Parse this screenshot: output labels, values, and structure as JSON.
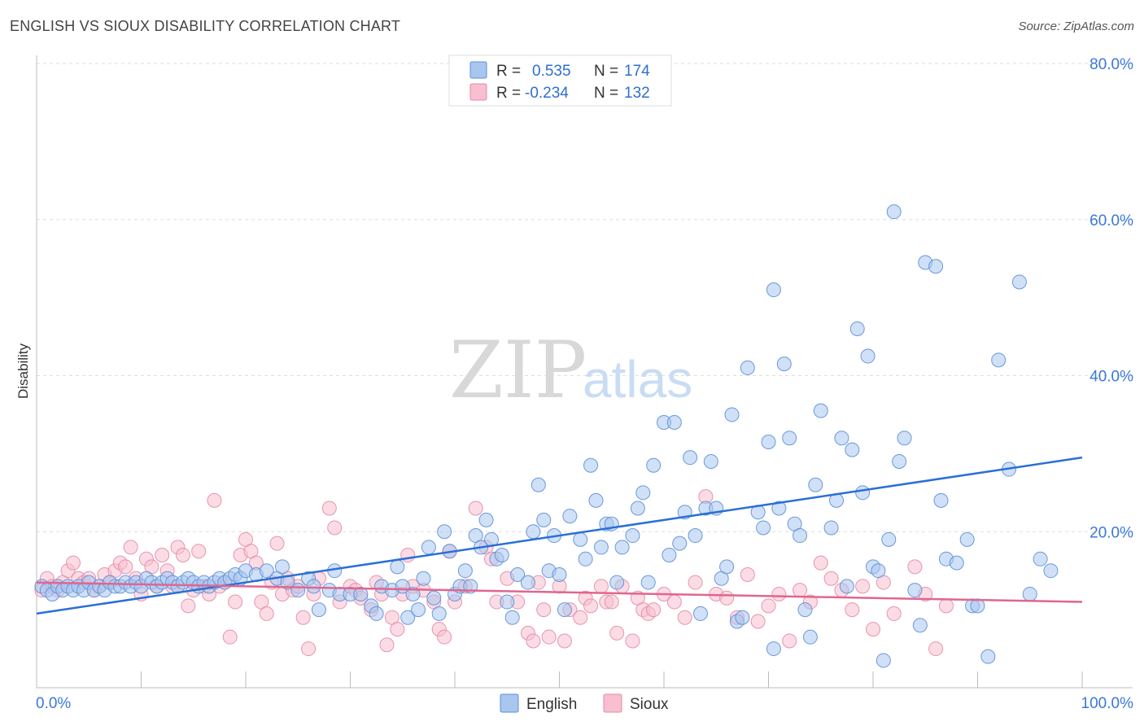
{
  "header": {
    "title": "ENGLISH VS SIOUX DISABILITY CORRELATION CHART",
    "source": "Source: ZipAtlas.com"
  },
  "watermark": {
    "zip": "ZIP",
    "atlas": "atlas"
  },
  "legend_top": {
    "rows": [
      {
        "r_label": "R =",
        "r_value": "0.535",
        "n_label": "N =",
        "n_value": "174"
      },
      {
        "r_label": "R =",
        "r_value": "-0.234",
        "n_label": "N =",
        "n_value": "132"
      }
    ]
  },
  "legend_bottom": {
    "items": [
      "English",
      "Sioux"
    ]
  },
  "colors": {
    "english_fill": "#a9c6ee",
    "english_stroke": "#5b8fd8",
    "english_line": "#2a6fd6",
    "sioux_fill": "#f7bfd0",
    "sioux_stroke": "#e58aa7",
    "sioux_line": "#e0668f",
    "axis_text": "#3b78d8",
    "grid": "#dddddd"
  },
  "chart_data": {
    "type": "scatter",
    "title": "ENGLISH VS SIOUX DISABILITY CORRELATION CHART",
    "xlabel": "",
    "ylabel": "Disability",
    "xlim": [
      0,
      100
    ],
    "ylim": [
      0,
      80
    ],
    "x_tick_labels": [
      "0.0%",
      "100.0%"
    ],
    "y_ticks": [
      20,
      40,
      60,
      80
    ],
    "y_tick_labels": [
      "20.0%",
      "40.0%",
      "60.0%",
      "80.0%"
    ],
    "grid": true,
    "series": [
      {
        "name": "English",
        "r": 0.535,
        "n": 174,
        "trend": [
          [
            0,
            9.5
          ],
          [
            100,
            29.5
          ]
        ],
        "points": [
          [
            0.5,
            13
          ],
          [
            1,
            12.5
          ],
          [
            1.5,
            12
          ],
          [
            2,
            13
          ],
          [
            2.5,
            12.5
          ],
          [
            3,
            13
          ],
          [
            3.5,
            12.5
          ],
          [
            4,
            13
          ],
          [
            4.5,
            12.5
          ],
          [
            5,
            13.5
          ],
          [
            5.5,
            12.5
          ],
          [
            6,
            13
          ],
          [
            6.5,
            12.5
          ],
          [
            7,
            13.5
          ],
          [
            7.5,
            13
          ],
          [
            8,
            13
          ],
          [
            8.5,
            13.5
          ],
          [
            9,
            13
          ],
          [
            9.5,
            13.5
          ],
          [
            10,
            13
          ],
          [
            10.5,
            14
          ],
          [
            11,
            13.5
          ],
          [
            11.5,
            13
          ],
          [
            12,
            13.5
          ],
          [
            12.5,
            14
          ],
          [
            13,
            13.5
          ],
          [
            13.5,
            13
          ],
          [
            14,
            13.5
          ],
          [
            14.5,
            14
          ],
          [
            15,
            13.5
          ],
          [
            15.5,
            13
          ],
          [
            16,
            13.5
          ],
          [
            16.5,
            13
          ],
          [
            17,
            13.5
          ],
          [
            17.5,
            14
          ],
          [
            18,
            13.5
          ],
          [
            18.5,
            14
          ],
          [
            19,
            14.5
          ],
          [
            19.5,
            14
          ],
          [
            20,
            15
          ],
          [
            21,
            14.5
          ],
          [
            22,
            15
          ],
          [
            23,
            14
          ],
          [
            23.5,
            15.5
          ],
          [
            24,
            13.5
          ],
          [
            25,
            12.5
          ],
          [
            26,
            14
          ],
          [
            26.5,
            13
          ],
          [
            27,
            10
          ],
          [
            28,
            12.5
          ],
          [
            28.5,
            15
          ],
          [
            29,
            12
          ],
          [
            30,
            12
          ],
          [
            31,
            12
          ],
          [
            32,
            10.5
          ],
          [
            32.5,
            9.5
          ],
          [
            33,
            13
          ],
          [
            34,
            12.5
          ],
          [
            34.5,
            15.5
          ],
          [
            35,
            13
          ],
          [
            35.5,
            9
          ],
          [
            36,
            12
          ],
          [
            36.5,
            10
          ],
          [
            37,
            14
          ],
          [
            37.5,
            18
          ],
          [
            38,
            11.5
          ],
          [
            38.5,
            9.5
          ],
          [
            39,
            20
          ],
          [
            39.5,
            17.5
          ],
          [
            40,
            12
          ],
          [
            40.5,
            13
          ],
          [
            41,
            15
          ],
          [
            41.5,
            13
          ],
          [
            42,
            19.5
          ],
          [
            42.5,
            18
          ],
          [
            43,
            21.5
          ],
          [
            43.5,
            19
          ],
          [
            44,
            16.5
          ],
          [
            44.5,
            17
          ],
          [
            45,
            11
          ],
          [
            45.5,
            9
          ],
          [
            46,
            14.5
          ],
          [
            47,
            13.5
          ],
          [
            47.5,
            20
          ],
          [
            48,
            26
          ],
          [
            48.5,
            21.5
          ],
          [
            49,
            15
          ],
          [
            49.5,
            19.5
          ],
          [
            50,
            14.5
          ],
          [
            50.5,
            10
          ],
          [
            51,
            22
          ],
          [
            52,
            19
          ],
          [
            52.5,
            16.5
          ],
          [
            53,
            28.5
          ],
          [
            53.5,
            24
          ],
          [
            54,
            18
          ],
          [
            54.5,
            21
          ],
          [
            55,
            21
          ],
          [
            55.5,
            13.5
          ],
          [
            56,
            18
          ],
          [
            57,
            19.5
          ],
          [
            57.5,
            23
          ],
          [
            58,
            25
          ],
          [
            58.5,
            13.5
          ],
          [
            59,
            28.5
          ],
          [
            60,
            34
          ],
          [
            60.5,
            17
          ],
          [
            61,
            34
          ],
          [
            61.5,
            18.5
          ],
          [
            62,
            22.5
          ],
          [
            62.5,
            29.5
          ],
          [
            63,
            19.5
          ],
          [
            63.5,
            9.5
          ],
          [
            64,
            23
          ],
          [
            64.5,
            29
          ],
          [
            65,
            23
          ],
          [
            65.5,
            14
          ],
          [
            66,
            15.5
          ],
          [
            66.5,
            35
          ],
          [
            67,
            8.5
          ],
          [
            67.5,
            9
          ],
          [
            68,
            41
          ],
          [
            69,
            22.5
          ],
          [
            69.5,
            20.5
          ],
          [
            70,
            31.5
          ],
          [
            70.5,
            51
          ],
          [
            70.5,
            5
          ],
          [
            71,
            23
          ],
          [
            71.5,
            41.5
          ],
          [
            72,
            32
          ],
          [
            72.5,
            21
          ],
          [
            73,
            19.5
          ],
          [
            73.5,
            10
          ],
          [
            74,
            6.5
          ],
          [
            74.5,
            26
          ],
          [
            75,
            35.5
          ],
          [
            76,
            20.5
          ],
          [
            76.5,
            24
          ],
          [
            77,
            32
          ],
          [
            77.5,
            13
          ],
          [
            78,
            30.5
          ],
          [
            78.5,
            46
          ],
          [
            79,
            25
          ],
          [
            79.5,
            42.5
          ],
          [
            80,
            15.5
          ],
          [
            80.5,
            15
          ],
          [
            81,
            3.5
          ],
          [
            81.5,
            19
          ],
          [
            82,
            61
          ],
          [
            82.5,
            29
          ],
          [
            83,
            32
          ],
          [
            84,
            12.5
          ],
          [
            84.5,
            8
          ],
          [
            85,
            54.5
          ],
          [
            86,
            54
          ],
          [
            86.5,
            24
          ],
          [
            87,
            16.5
          ],
          [
            88,
            16
          ],
          [
            89,
            19
          ],
          [
            89.5,
            10.5
          ],
          [
            90,
            10.5
          ],
          [
            91,
            4
          ],
          [
            92,
            42
          ],
          [
            93,
            28
          ],
          [
            94,
            52
          ],
          [
            95,
            12
          ],
          [
            96,
            16.5
          ],
          [
            97,
            15
          ]
        ]
      },
      {
        "name": "Sioux",
        "r": -0.234,
        "n": 132,
        "trend": [
          [
            0,
            13.5
          ],
          [
            100,
            11
          ]
        ],
        "points": [
          [
            0.5,
            12.5
          ],
          [
            1,
            14
          ],
          [
            1.5,
            13
          ],
          [
            2,
            12.5
          ],
          [
            2.5,
            13.5
          ],
          [
            3,
            15
          ],
          [
            3.5,
            16
          ],
          [
            4,
            14
          ],
          [
            4.5,
            13.5
          ],
          [
            5,
            14
          ],
          [
            5.5,
            12.5
          ],
          [
            6,
            13
          ],
          [
            6.5,
            14.5
          ],
          [
            7,
            13.5
          ],
          [
            7.5,
            15
          ],
          [
            8,
            16
          ],
          [
            8.5,
            15.5
          ],
          [
            9,
            18
          ],
          [
            9.5,
            14
          ],
          [
            10,
            12
          ],
          [
            10.5,
            16.5
          ],
          [
            11,
            15.5
          ],
          [
            11.5,
            13
          ],
          [
            12,
            17
          ],
          [
            12.5,
            15
          ],
          [
            13,
            13
          ],
          [
            13.5,
            18
          ],
          [
            14,
            17
          ],
          [
            14.5,
            10.5
          ],
          [
            15,
            12.5
          ],
          [
            15.5,
            17.5
          ],
          [
            16,
            13
          ],
          [
            16.5,
            12
          ],
          [
            17,
            24
          ],
          [
            17.5,
            13
          ],
          [
            18,
            13.5
          ],
          [
            18.5,
            6.5
          ],
          [
            19,
            11
          ],
          [
            19.5,
            17
          ],
          [
            20,
            19
          ],
          [
            20.5,
            17.5
          ],
          [
            21,
            16
          ],
          [
            21.5,
            11
          ],
          [
            22,
            9.5
          ],
          [
            22.5,
            13.5
          ],
          [
            23,
            18.5
          ],
          [
            23.5,
            12
          ],
          [
            24,
            14
          ],
          [
            24.5,
            12.5
          ],
          [
            25,
            13
          ],
          [
            25.5,
            9
          ],
          [
            26,
            5
          ],
          [
            26.5,
            12
          ],
          [
            27,
            14
          ],
          [
            28,
            23
          ],
          [
            28.5,
            20.5
          ],
          [
            29,
            11
          ],
          [
            30,
            13
          ],
          [
            30.5,
            12.5
          ],
          [
            31,
            11.5
          ],
          [
            32,
            10
          ],
          [
            32.5,
            13.5
          ],
          [
            33,
            12
          ],
          [
            33.5,
            5.5
          ],
          [
            34,
            9
          ],
          [
            34.5,
            7.5
          ],
          [
            35,
            12
          ],
          [
            35.5,
            17
          ],
          [
            36,
            13
          ],
          [
            37,
            12.5
          ],
          [
            38,
            11
          ],
          [
            38.5,
            7.5
          ],
          [
            39,
            6.5
          ],
          [
            39.5,
            17.5
          ],
          [
            40,
            11
          ],
          [
            41,
            13
          ],
          [
            42,
            23
          ],
          [
            43,
            18
          ],
          [
            43.5,
            16.5
          ],
          [
            44,
            11
          ],
          [
            45,
            14
          ],
          [
            46,
            11
          ],
          [
            47,
            7
          ],
          [
            47.5,
            6
          ],
          [
            48,
            13.5
          ],
          [
            48.5,
            10
          ],
          [
            49,
            6.5
          ],
          [
            50,
            13
          ],
          [
            50.5,
            6
          ],
          [
            51,
            10
          ],
          [
            52,
            9
          ],
          [
            52.5,
            11.5
          ],
          [
            53,
            10.5
          ],
          [
            54,
            13
          ],
          [
            54.5,
            11
          ],
          [
            55,
            11
          ],
          [
            55.5,
            7
          ],
          [
            56,
            13
          ],
          [
            57,
            6
          ],
          [
            57.5,
            11.5
          ],
          [
            58,
            10
          ],
          [
            58.5,
            9.5
          ],
          [
            59,
            10
          ],
          [
            60,
            12
          ],
          [
            61,
            11
          ],
          [
            62,
            9
          ],
          [
            63,
            13.5
          ],
          [
            64,
            24.5
          ],
          [
            65,
            12
          ],
          [
            66,
            11.5
          ],
          [
            67,
            9
          ],
          [
            68,
            14.5
          ],
          [
            69,
            8.5
          ],
          [
            70,
            10.5
          ],
          [
            71,
            12
          ],
          [
            72,
            6
          ],
          [
            73,
            12.5
          ],
          [
            74,
            11
          ],
          [
            75,
            16
          ],
          [
            76,
            14
          ],
          [
            77,
            12.5
          ],
          [
            78,
            10
          ],
          [
            79,
            13
          ],
          [
            80,
            7.5
          ],
          [
            81,
            13.5
          ],
          [
            82,
            9.5
          ],
          [
            84,
            15.5
          ],
          [
            85,
            12
          ],
          [
            86,
            5
          ],
          [
            87,
            10.5
          ]
        ]
      }
    ]
  }
}
